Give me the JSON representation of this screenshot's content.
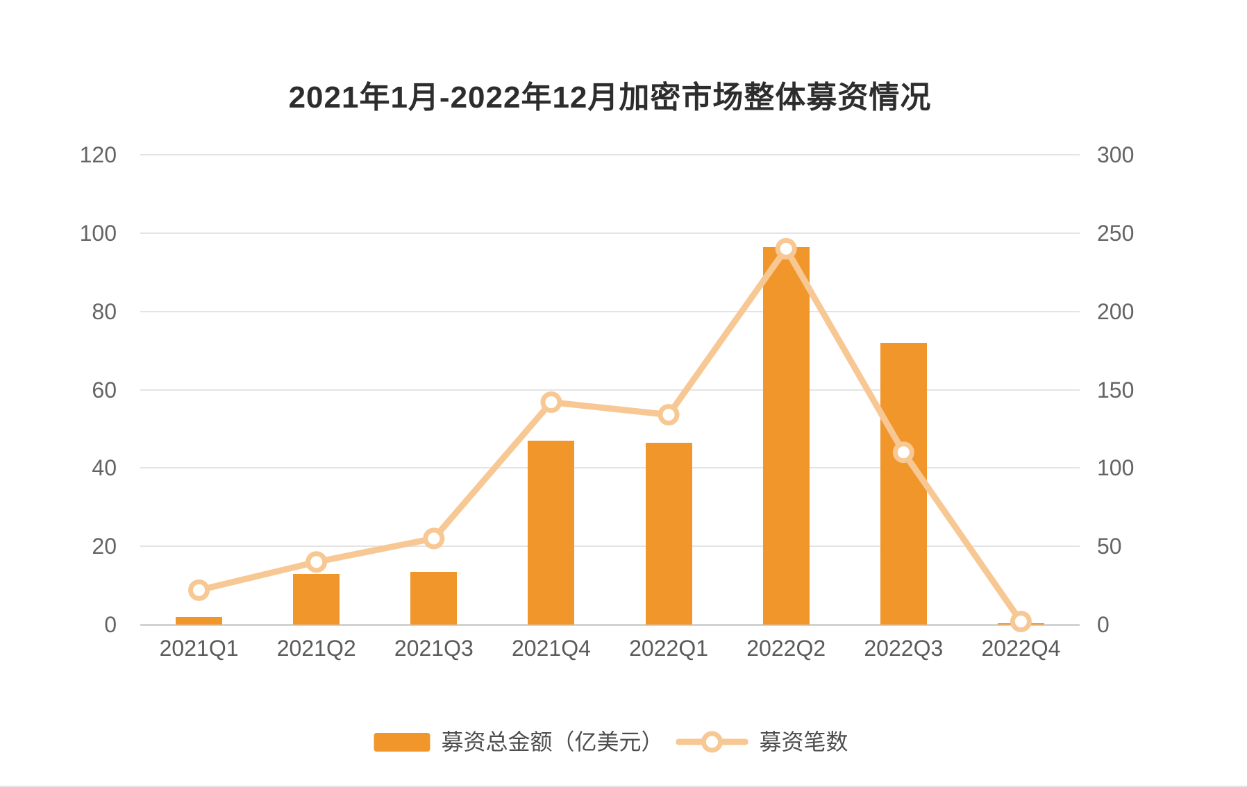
{
  "chart_data": {
    "type": "bar+line",
    "title": "2021年1月-2022年12月加密市场整体募资情况",
    "categories": [
      "2021Q1",
      "2021Q2",
      "2021Q3",
      "2021Q4",
      "2022Q1",
      "2022Q2",
      "2022Q3",
      "2022Q4"
    ],
    "series": [
      {
        "name": "募资总金额（亿美元）",
        "type": "bar",
        "axis": "left",
        "color": "#f0962b",
        "values": [
          2,
          13,
          13.4,
          47,
          46.5,
          96.5,
          72,
          0.3
        ]
      },
      {
        "name": "募资笔数",
        "type": "line",
        "axis": "right",
        "color": "#f7c893",
        "marker": "circle, white fill, orange ring",
        "values": [
          22,
          40,
          55,
          142,
          134,
          240,
          110,
          2
        ]
      }
    ],
    "left_axis": {
      "min": 0,
      "max": 120,
      "ticks": [
        0,
        20,
        40,
        60,
        80,
        100,
        120
      ]
    },
    "right_axis": {
      "min": 0,
      "max": 300,
      "ticks": [
        0,
        50,
        100,
        150,
        200,
        250,
        300
      ]
    },
    "grid": "horizontal gridlines only, light grey",
    "legend_position": "bottom-center",
    "background": "#ffffff"
  }
}
